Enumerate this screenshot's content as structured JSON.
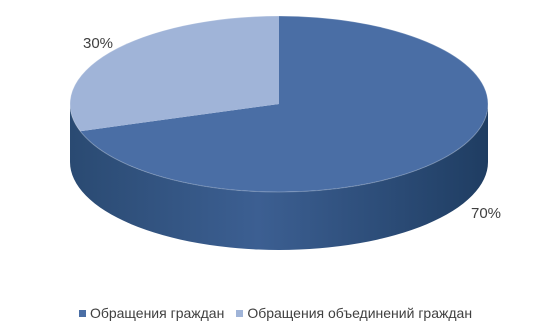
{
  "chart_data": {
    "type": "pie",
    "title": "",
    "slices": [
      {
        "label": "Обращения граждан",
        "value": 70,
        "display": "70%",
        "color": "#4a6ea5"
      },
      {
        "label": "Обращения объединений граждан",
        "value": 30,
        "display": "30%",
        "color": "#a0b4d8"
      }
    ],
    "legend_position": "bottom",
    "three_d": true
  }
}
